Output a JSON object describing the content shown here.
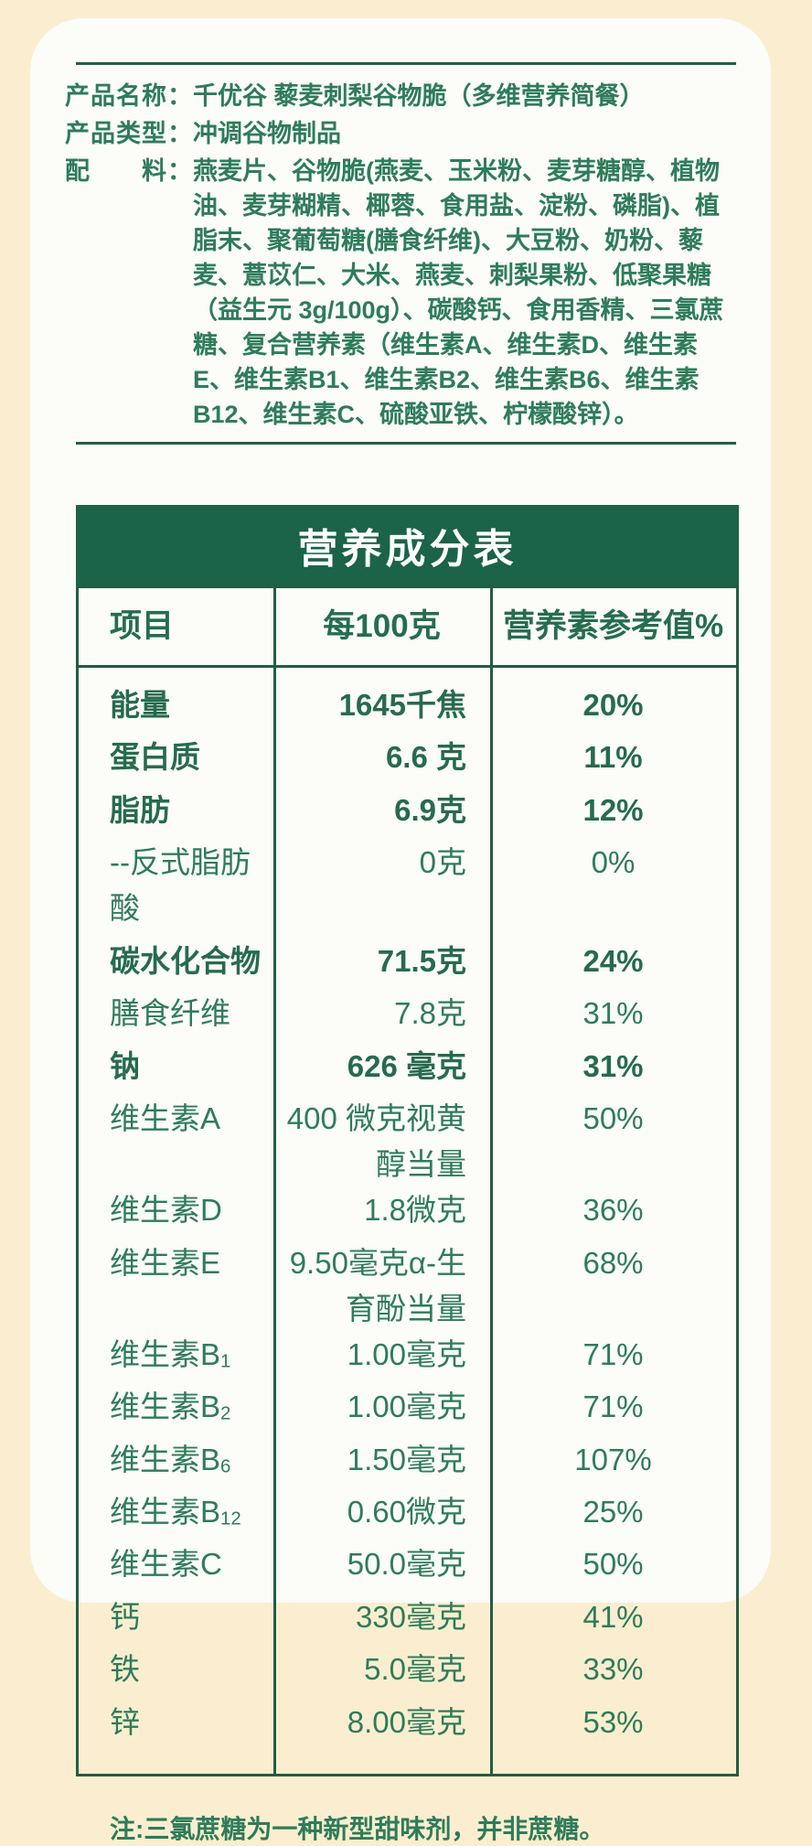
{
  "colors": {
    "page_background": "#fbeed0",
    "card_background": "#fcfcf8",
    "text_green": "#2e7c5a",
    "table_border_green": "#235c43",
    "title_bar_background": "#1b6349",
    "title_bar_text": "#ffffff"
  },
  "product_info": {
    "rows": [
      {
        "label": "产品名称：",
        "value": "千优谷 藜麦刺梨谷物脆（多维营养简餐）"
      },
      {
        "label": "产品类型：",
        "value": "冲调谷物制品"
      },
      {
        "label": "配　　料：",
        "value": "燕麦片、谷物脆(燕麦、玉米粉、麦芽糖醇、植物油、麦芽糊精、椰蓉、食用盐、淀粉、磷脂)、植脂末、聚葡萄糖(膳食纤维)、大豆粉、奶粉、藜麦、薏苡仁、大米、燕麦、刺梨果粉、低聚果糖（益生元 3g/100g）、碳酸钙、食用香精、三氯蔗糖、复合营养素（维生素A、维生素D、维生素E、维生素B1、维生素B2、维生素B6、维生素B12、维生素C、硫酸亚铁、柠檬酸锌）。"
      }
    ]
  },
  "nutrition_table": {
    "title": "营养成分表",
    "headers": [
      "项目",
      "每100克",
      "营养素参考值%"
    ],
    "rows": [
      {
        "name": "能量",
        "sub": "",
        "value": "1645千焦",
        "nrv": "20%",
        "bold": true
      },
      {
        "name": "蛋白质",
        "sub": "",
        "value": "6.6 克",
        "nrv": "11%",
        "bold": true
      },
      {
        "name": "脂肪",
        "sub": "",
        "value": "6.9克",
        "nrv": "12%",
        "bold": true
      },
      {
        "name": "--反式脂肪酸",
        "sub": "",
        "value": "0克",
        "nrv": "0%",
        "bold": false
      },
      {
        "name": "碳水化合物",
        "sub": "",
        "value": "71.5克",
        "nrv": "24%",
        "bold": true
      },
      {
        "name": "膳食纤维",
        "sub": "",
        "value": "7.8克",
        "nrv": "31%",
        "bold": false
      },
      {
        "name": "钠",
        "sub": "",
        "value": "626 毫克",
        "nrv": "31%",
        "bold": true
      },
      {
        "name": "维生素A",
        "sub": "",
        "value": "400 微克视黄醇当量",
        "nrv": "50%",
        "bold": false
      },
      {
        "name": "维生素D",
        "sub": "",
        "value": "1.8微克",
        "nrv": "36%",
        "bold": false
      },
      {
        "name": "维生素E",
        "sub": "",
        "value": "9.50毫克α-生育酚当量",
        "nrv": "68%",
        "bold": false
      },
      {
        "name": "维生素B",
        "sub": "1",
        "value": "1.00毫克",
        "nrv": "71%",
        "bold": false
      },
      {
        "name": "维生素B",
        "sub": "2",
        "value": "1.00毫克",
        "nrv": "71%",
        "bold": false
      },
      {
        "name": "维生素B",
        "sub": "6",
        "value": "1.50毫克",
        "nrv": "107%",
        "bold": false
      },
      {
        "name": "维生素B",
        "sub": "12",
        "value": "0.60微克",
        "nrv": "25%",
        "bold": false
      },
      {
        "name": "维生素C",
        "sub": "",
        "value": "50.0毫克",
        "nrv": "50%",
        "bold": false
      },
      {
        "name": "钙",
        "sub": "",
        "value": "330毫克",
        "nrv": "41%",
        "bold": false
      },
      {
        "name": "铁",
        "sub": "",
        "value": "5.0毫克",
        "nrv": "33%",
        "bold": false
      },
      {
        "name": "锌",
        "sub": "",
        "value": "8.00毫克",
        "nrv": "53%",
        "bold": false
      }
    ],
    "footnote": "注:三氯蔗糖为一种新型甜味剂，并非蔗糖。"
  }
}
